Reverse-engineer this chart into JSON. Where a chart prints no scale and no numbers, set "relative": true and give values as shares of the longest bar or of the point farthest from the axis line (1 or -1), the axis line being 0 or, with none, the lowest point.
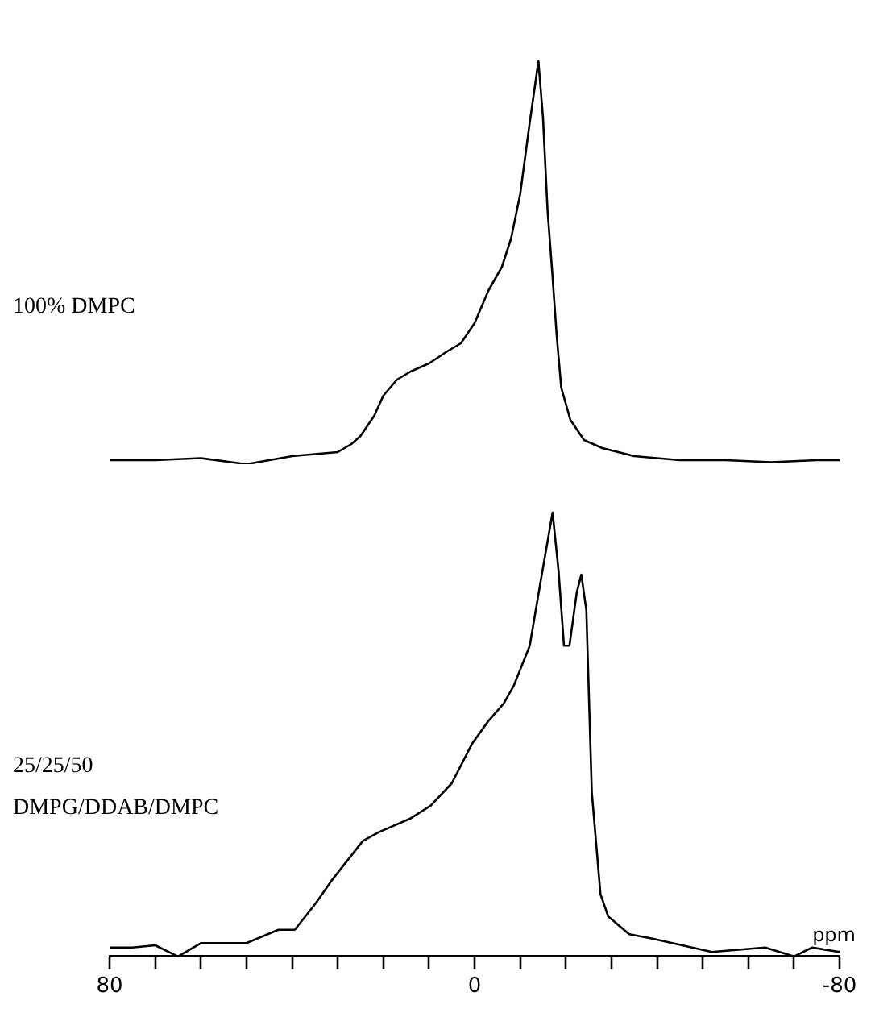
{
  "chart_data": [
    {
      "type": "line",
      "relative": true,
      "xlim": [
        80,
        -80
      ],
      "tick_labels": false,
      "grid": false,
      "legend": false,
      "marker": "none",
      "line_style": "solid",
      "series": [
        {
          "name": "100% DMPC",
          "color": "#000000",
          "x": [
            80,
            70,
            60,
            50,
            40,
            30,
            27,
            25,
            22,
            20,
            17,
            14,
            10,
            6,
            3,
            0,
            -3,
            -6,
            -8,
            -10,
            -12,
            -14,
            -15,
            -16,
            -17,
            -18,
            -19,
            -21,
            -24,
            -28,
            -35,
            -45,
            -55,
            -65,
            -75,
            -80
          ],
          "values": [
            0.01,
            0.01,
            0.015,
            0,
            0.02,
            0.03,
            0.05,
            0.07,
            0.12,
            0.17,
            0.21,
            0.23,
            0.25,
            0.28,
            0.3,
            0.35,
            0.43,
            0.49,
            0.56,
            0.67,
            0.84,
            1,
            0.86,
            0.63,
            0.48,
            0.32,
            0.19,
            0.11,
            0.06,
            0.04,
            0.02,
            0.01,
            0.01,
            0.005,
            0.01,
            0.01
          ]
        }
      ]
    },
    {
      "type": "line",
      "relative": true,
      "xlim": [
        80,
        -80
      ],
      "xlabel": "ppm",
      "tick_labels": "x",
      "grid": false,
      "legend": false,
      "marker": "none",
      "line_style": "solid",
      "xticks": [
        80,
        {
          "value": 70,
          "label": null
        },
        {
          "value": 60,
          "label": null
        },
        {
          "value": 50,
          "label": null
        },
        {
          "value": 40,
          "label": null
        },
        {
          "value": 30,
          "label": null
        },
        {
          "value": 20,
          "label": null
        },
        {
          "value": 10,
          "label": null
        },
        0,
        {
          "value": -10,
          "label": null
        },
        {
          "value": -20,
          "label": null
        },
        {
          "value": -30,
          "label": null
        },
        {
          "value": -40,
          "label": null
        },
        {
          "value": -50,
          "label": null
        },
        {
          "value": -60,
          "label": null
        },
        {
          "value": -70,
          "label": null
        },
        -80
      ],
      "series": [
        {
          "name": "25/25/50 DMPG/DDAB/DMPC",
          "color": "#000000",
          "x": [
            80,
            75,
            70,
            65,
            60,
            50,
            43,
            39.4,
            34.8,
            31.4,
            24.5,
            21,
            14.2,
            9.6,
            5,
            0.5,
            -3,
            -6.4,
            -8.6,
            -12.1,
            -14.4,
            -17.1,
            -18.4,
            -19.6,
            -20.8,
            -22.4,
            -23.4,
            -24.5,
            -25.7,
            -27.6,
            -29.3,
            -33.9,
            -39,
            -52,
            -63.7,
            -70,
            -74,
            -80
          ],
          "values": [
            0.02,
            0.02,
            0.025,
            0,
            0.03,
            0.03,
            0.06,
            0.06,
            0.12,
            0.17,
            0.26,
            0.28,
            0.31,
            0.34,
            0.39,
            0.48,
            0.53,
            0.57,
            0.61,
            0.7,
            0.84,
            1,
            0.87,
            0.7,
            0.7,
            0.82,
            0.86,
            0.78,
            0.37,
            0.14,
            0.09,
            0.05,
            0.04,
            0.01,
            0.02,
            0,
            0.02,
            0.01
          ]
        }
      ]
    }
  ]
}
